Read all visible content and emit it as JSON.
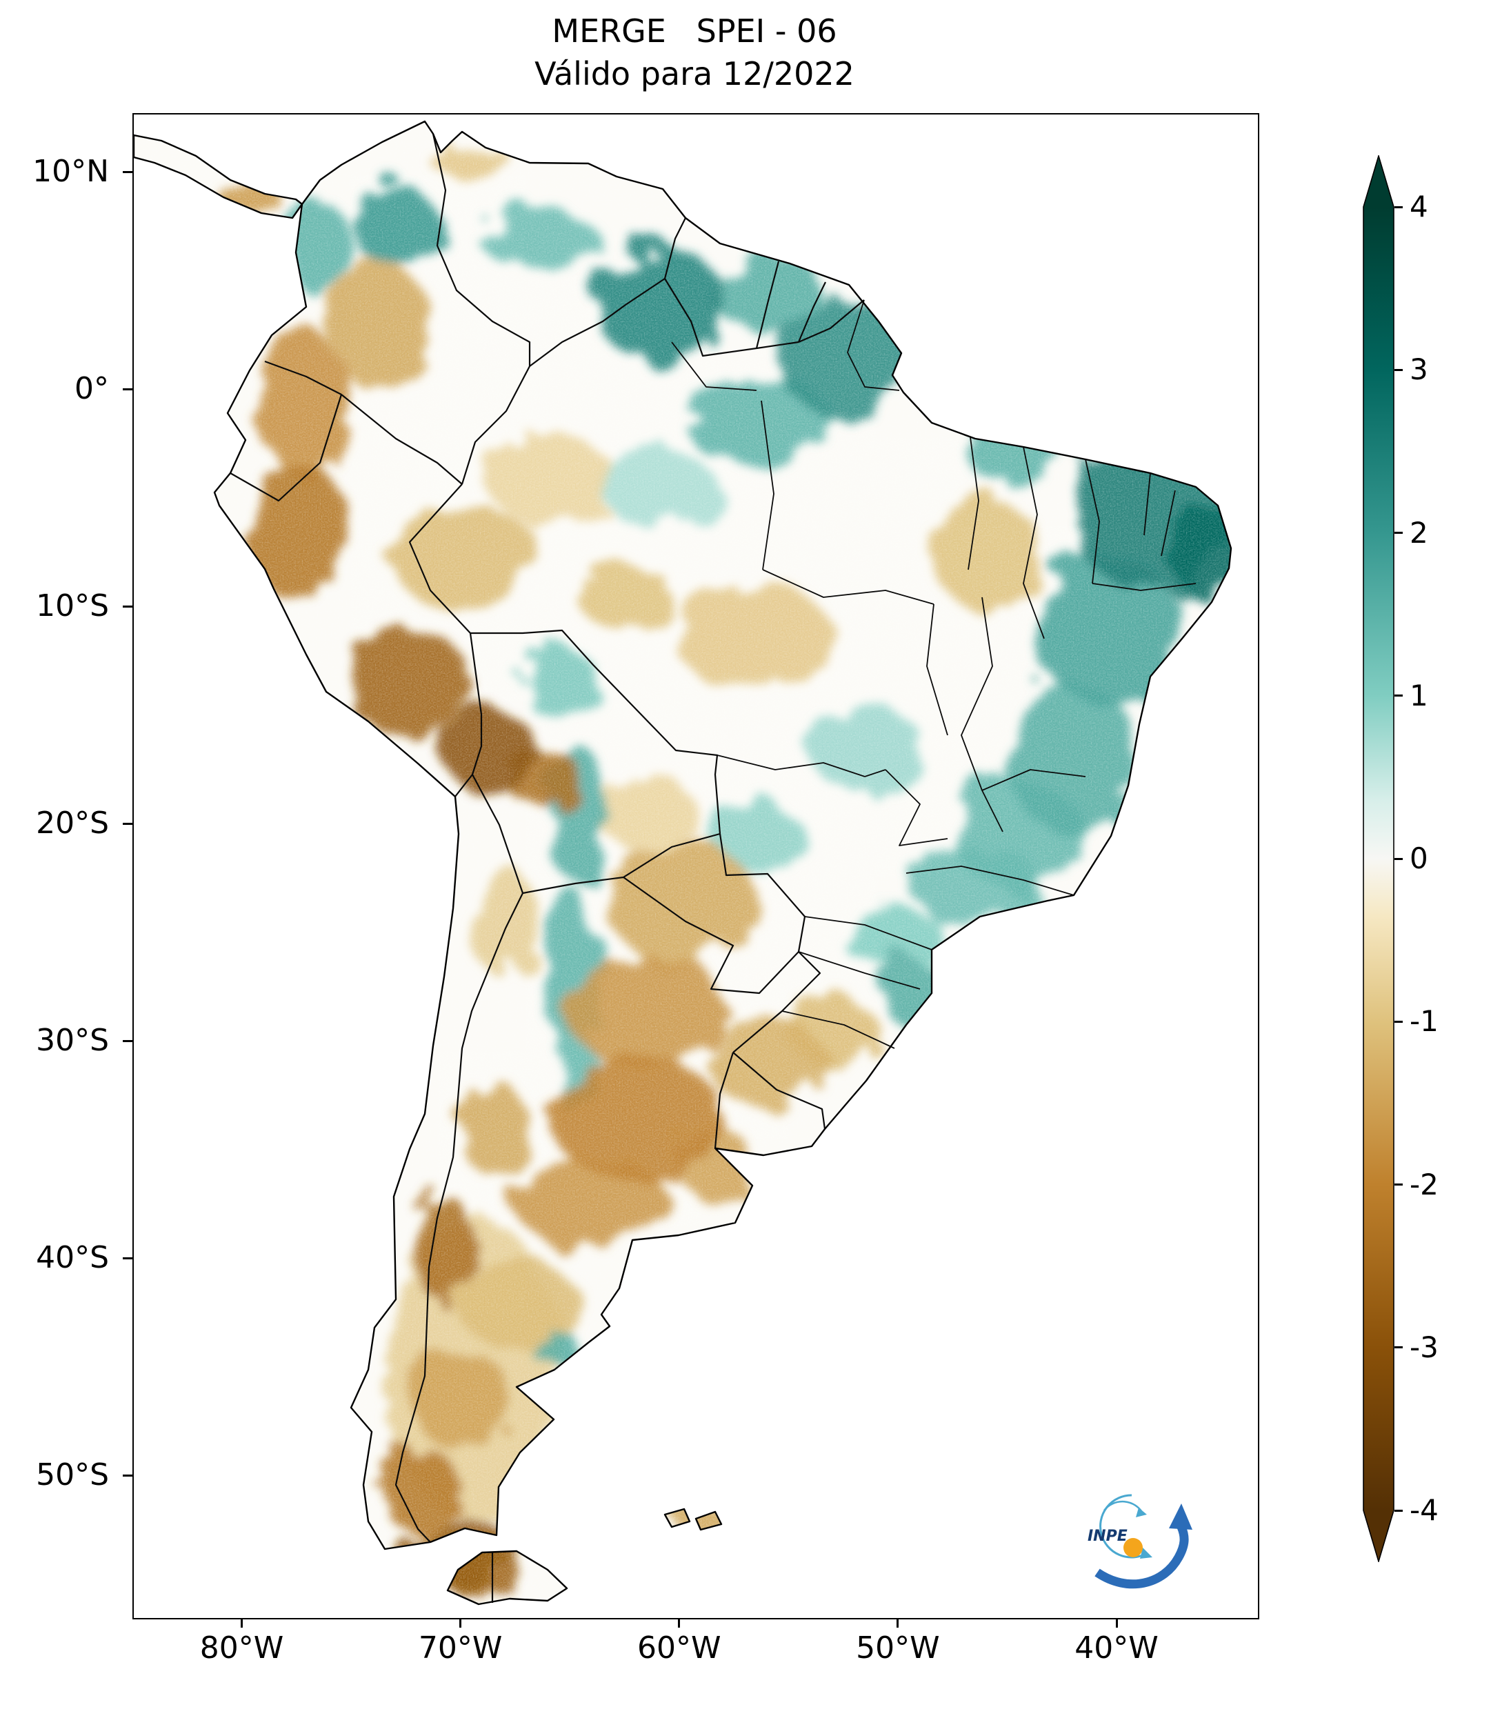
{
  "title": "MERGE   SPEI - 06",
  "subtitle": "Válido para 12/2022",
  "logo": {
    "label": "INPE"
  },
  "axes": {
    "x_ticks": [
      {
        "label": "80°W",
        "lon": 80
      },
      {
        "label": "70°W",
        "lon": 70
      },
      {
        "label": "60°W",
        "lon": 60
      },
      {
        "label": "50°W",
        "lon": 50
      },
      {
        "label": "40°W",
        "lon": 40
      }
    ],
    "y_ticks": [
      {
        "label": "10°N",
        "lat": 10
      },
      {
        "label": "0°",
        "lat": 0
      },
      {
        "label": "10°S",
        "lat": -10
      },
      {
        "label": "20°S",
        "lat": -20
      },
      {
        "label": "30°S",
        "lat": -30
      },
      {
        "label": "40°S",
        "lat": -40
      },
      {
        "label": "50°S",
        "lat": -50
      }
    ]
  },
  "colorbar": {
    "range": [
      -4,
      4
    ],
    "ticks": [
      {
        "label": "4",
        "value": 4
      },
      {
        "label": "3",
        "value": 3
      },
      {
        "label": "2",
        "value": 2
      },
      {
        "label": "1",
        "value": 1
      },
      {
        "label": "0",
        "value": 0
      },
      {
        "label": "-1",
        "value": -1
      },
      {
        "label": "-2",
        "value": -2
      },
      {
        "label": "-3",
        "value": -3
      },
      {
        "label": "-4",
        "value": -4
      }
    ],
    "stops": [
      {
        "v": -4,
        "c": "#543005"
      },
      {
        "v": -3,
        "c": "#8a5109"
      },
      {
        "v": -2,
        "c": "#bf812d"
      },
      {
        "v": -1,
        "c": "#dfc27d"
      },
      {
        "v": -0.35,
        "c": "#f6e8c3"
      },
      {
        "v": 0,
        "c": "#f7f7f4"
      },
      {
        "v": 0.35,
        "c": "#d8efea"
      },
      {
        "v": 1,
        "c": "#80cdc1"
      },
      {
        "v": 2,
        "c": "#35978f"
      },
      {
        "v": 3,
        "c": "#01665e"
      },
      {
        "v": 4,
        "c": "#003c30"
      }
    ]
  },
  "chart_data": {
    "type": "heatmap",
    "variable": "SPEI-06",
    "product": "MERGE",
    "valid_for": "12/2022",
    "value_range": [
      -4,
      4
    ],
    "extent": {
      "lon_west": 85,
      "lon_east": 33.6,
      "lat_north": 12.7,
      "lat_south": -56.5
    },
    "regions": [
      {
        "name": "ne-brazil-core",
        "lat": -6,
        "lon": 38.5,
        "rx": 3.5,
        "ry": 3.2,
        "spei": 2.6
      },
      {
        "name": "ne-brazil-east",
        "lat": -7.5,
        "lon": 35.8,
        "rx": 1.8,
        "ry": 2.2,
        "spei": 3.0
      },
      {
        "name": "bahia-interior",
        "lat": -11,
        "lon": 40.5,
        "rx": 3.2,
        "ry": 3.5,
        "spei": 1.8
      },
      {
        "name": "minas-espirito-santo",
        "lat": -17,
        "lon": 42,
        "rx": 3,
        "ry": 3.5,
        "spei": 1.6
      },
      {
        "name": "minas-south",
        "lat": -20.5,
        "lon": 44.5,
        "rx": 3,
        "ry": 2.5,
        "spei": 1.4
      },
      {
        "name": "sao-paulo-rio",
        "lat": -22.8,
        "lon": 46.5,
        "rx": 3,
        "ry": 1.8,
        "spei": 1.3
      },
      {
        "name": "parana",
        "lat": -25,
        "lon": 50.5,
        "rx": 2.2,
        "ry": 1.6,
        "spei": 1.0
      },
      {
        "name": "santa-catarina-coast",
        "lat": -27.8,
        "lon": 49.3,
        "rx": 1.4,
        "ry": 1.6,
        "spei": 1.6
      },
      {
        "name": "roraima-guyana",
        "lat": 4,
        "lon": 61,
        "rx": 3,
        "ry": 2.6,
        "spei": 2.4
      },
      {
        "name": "amapa-north-para",
        "lat": 1.5,
        "lon": 52.5,
        "rx": 3.2,
        "ry": 2.6,
        "spei": 2.2
      },
      {
        "name": "lower-amazon",
        "lat": -1.5,
        "lon": 56.5,
        "rx": 3.2,
        "ry": 2.2,
        "spei": 1.5
      },
      {
        "name": "guianas-coast",
        "lat": 4.5,
        "lon": 56,
        "rx": 2.6,
        "ry": 1.8,
        "spei": 1.6
      },
      {
        "name": "maranhao-coast",
        "lat": -2.8,
        "lon": 44.8,
        "rx": 2.2,
        "ry": 1.4,
        "spei": 1.5
      },
      {
        "name": "catatumbo-colombia",
        "lat": 7.5,
        "lon": 73,
        "rx": 2,
        "ry": 1.8,
        "spei": 2.0
      },
      {
        "name": "nw-colombia",
        "lat": 6.5,
        "lon": 76.5,
        "rx": 1.4,
        "ry": 2.2,
        "spei": 1.5
      },
      {
        "name": "venezuela-llanos",
        "lat": 7,
        "lon": 66.5,
        "rx": 2.6,
        "ry": 1.5,
        "spei": 1.3
      },
      {
        "name": "bolivia-andes-band",
        "lat": -19.5,
        "lon": 64.7,
        "rx": 1.3,
        "ry": 3.2,
        "spei": 1.6
      },
      {
        "name": "nw-argentina-band",
        "lat": -26.5,
        "lon": 64.9,
        "rx": 1.4,
        "ry": 3.4,
        "spei": 1.5
      },
      {
        "name": "cordoba-sierras",
        "lat": -31.5,
        "lon": 64.7,
        "rx": 1.0,
        "ry": 2.0,
        "spei": 1.4
      },
      {
        "name": "beni",
        "lat": -13.5,
        "lon": 65.5,
        "rx": 1.8,
        "ry": 1.6,
        "spei": 1.1
      },
      {
        "name": "goias-patches",
        "lat": -16.5,
        "lon": 51.5,
        "rx": 2.6,
        "ry": 2,
        "spei": 0.8
      },
      {
        "name": "chubut-coast",
        "lat": -44,
        "lon": 65.8,
        "rx": 1.1,
        "ry": 0.9,
        "spei": 1.6
      },
      {
        "name": "pantanal",
        "lat": -20.5,
        "lon": 56.5,
        "rx": 2,
        "ry": 1.6,
        "spei": 0.9
      },
      {
        "name": "amazonas-center",
        "lat": -4.5,
        "lon": 61,
        "rx": 2.6,
        "ry": 1.8,
        "spei": 0.7
      },
      {
        "name": "peru-north",
        "lat": -6.5,
        "lon": 77.5,
        "rx": 2.4,
        "ry": 3.2,
        "spei": -2.2
      },
      {
        "name": "peru-south-andes",
        "lat": -13.5,
        "lon": 72.5,
        "rx": 3,
        "ry": 2.4,
        "spei": -2.6
      },
      {
        "name": "altiplano",
        "lat": -16.5,
        "lon": 68.8,
        "rx": 2.2,
        "ry": 1.8,
        "spei": -3.0
      },
      {
        "name": "cochabamba",
        "lat": -17.8,
        "lon": 66.3,
        "rx": 1.8,
        "ry": 1.3,
        "spei": -2.4
      },
      {
        "name": "ecuador-south-colombia",
        "lat": -0.5,
        "lon": 77.3,
        "rx": 2,
        "ry": 3.4,
        "spei": -1.8
      },
      {
        "name": "colombia-llanos-dry",
        "lat": 3,
        "lon": 73.8,
        "rx": 2.2,
        "ry": 3,
        "spei": -1.4
      },
      {
        "name": "west-amazon-dry",
        "lat": -7.5,
        "lon": 70,
        "rx": 3.4,
        "ry": 2.4,
        "spei": -1.1
      },
      {
        "name": "amazonas-sw-light",
        "lat": -4,
        "lon": 66,
        "rx": 3,
        "ry": 2,
        "spei": -0.7
      },
      {
        "name": "rondonia",
        "lat": -9.5,
        "lon": 62.5,
        "rx": 2.2,
        "ry": 1.5,
        "spei": -1.0
      },
      {
        "name": "mato-grosso",
        "lat": -11.5,
        "lon": 56.5,
        "rx": 3.6,
        "ry": 2.4,
        "spei": -0.9
      },
      {
        "name": "tocantins-maranhao",
        "lat": -7.5,
        "lon": 46,
        "rx": 2.6,
        "ry": 2.4,
        "spei": -1.0
      },
      {
        "name": "chaco-paraguay",
        "lat": -23.5,
        "lon": 60,
        "rx": 3.4,
        "ry": 2.8,
        "spei": -1.4
      },
      {
        "name": "north-argentina",
        "lat": -28.5,
        "lon": 61.5,
        "rx": 3.6,
        "ry": 2.8,
        "spei": -1.7
      },
      {
        "name": "pampas",
        "lat": -33.5,
        "lon": 62,
        "rx": 4,
        "ry": 2.8,
        "spei": -2.0
      },
      {
        "name": "south-pampa",
        "lat": -37.5,
        "lon": 64,
        "rx": 3.4,
        "ry": 2.2,
        "spei": -1.7
      },
      {
        "name": "uruguay-north",
        "lat": -31,
        "lon": 56,
        "rx": 2.6,
        "ry": 2.2,
        "spei": -1.3
      },
      {
        "name": "rio-grande-do-sul",
        "lat": -29.5,
        "lon": 53,
        "rx": 2,
        "ry": 1.6,
        "spei": -1.1
      },
      {
        "name": "mendoza",
        "lat": -34,
        "lon": 68.5,
        "rx": 1.6,
        "ry": 2.2,
        "spei": -1.4
      },
      {
        "name": "neuquen-andes",
        "lat": -39.5,
        "lon": 70.8,
        "rx": 1.2,
        "ry": 2.6,
        "spei": -2.4
      },
      {
        "name": "north-patagonia",
        "lat": -42,
        "lon": 67.5,
        "rx": 2.8,
        "ry": 2,
        "spei": -1.1
      },
      {
        "name": "patagonia-wash",
        "lat": -45,
        "lon": 69.5,
        "rx": 4,
        "ry": 7,
        "spei": -0.8
      },
      {
        "name": "central-patagonia",
        "lat": -46.5,
        "lon": 70,
        "rx": 2.4,
        "ry": 2.2,
        "spei": -1.5
      },
      {
        "name": "south-patagonia-andes",
        "lat": -50.5,
        "lon": 72,
        "rx": 1.8,
        "ry": 2,
        "spei": -2.2
      },
      {
        "name": "magallanes-tdf",
        "lat": -53.5,
        "lon": 70,
        "rx": 2.6,
        "ry": 1.6,
        "spei": -2.8
      },
      {
        "name": "tierra-del-fuego-south",
        "lat": -54.5,
        "lon": 69,
        "rx": 2,
        "ry": 1,
        "spei": -2.6
      },
      {
        "name": "falklands",
        "lat": -51.6,
        "lon": 59.3,
        "rx": 1.4,
        "ry": 0.6,
        "spei": -1.4
      },
      {
        "name": "panama",
        "lat": 8.8,
        "lon": 79.8,
        "rx": 1.6,
        "ry": 0.8,
        "spei": -1.6
      },
      {
        "name": "atacama-andes",
        "lat": -24.5,
        "lon": 68,
        "rx": 1.4,
        "ry": 2.6,
        "spei": -0.8
      },
      {
        "name": "se-bolivia",
        "lat": -19.5,
        "lon": 61.5,
        "rx": 2.2,
        "ry": 1.8,
        "spei": -0.7
      },
      {
        "name": "buenos-aires-east",
        "lat": -35.5,
        "lon": 58.5,
        "rx": 1.8,
        "ry": 1.6,
        "spei": -1.5
      },
      {
        "name": "venezuela-coast-dry",
        "lat": 10.5,
        "lon": 69.5,
        "rx": 1.8,
        "ry": 1,
        "spei": -0.9
      }
    ]
  }
}
